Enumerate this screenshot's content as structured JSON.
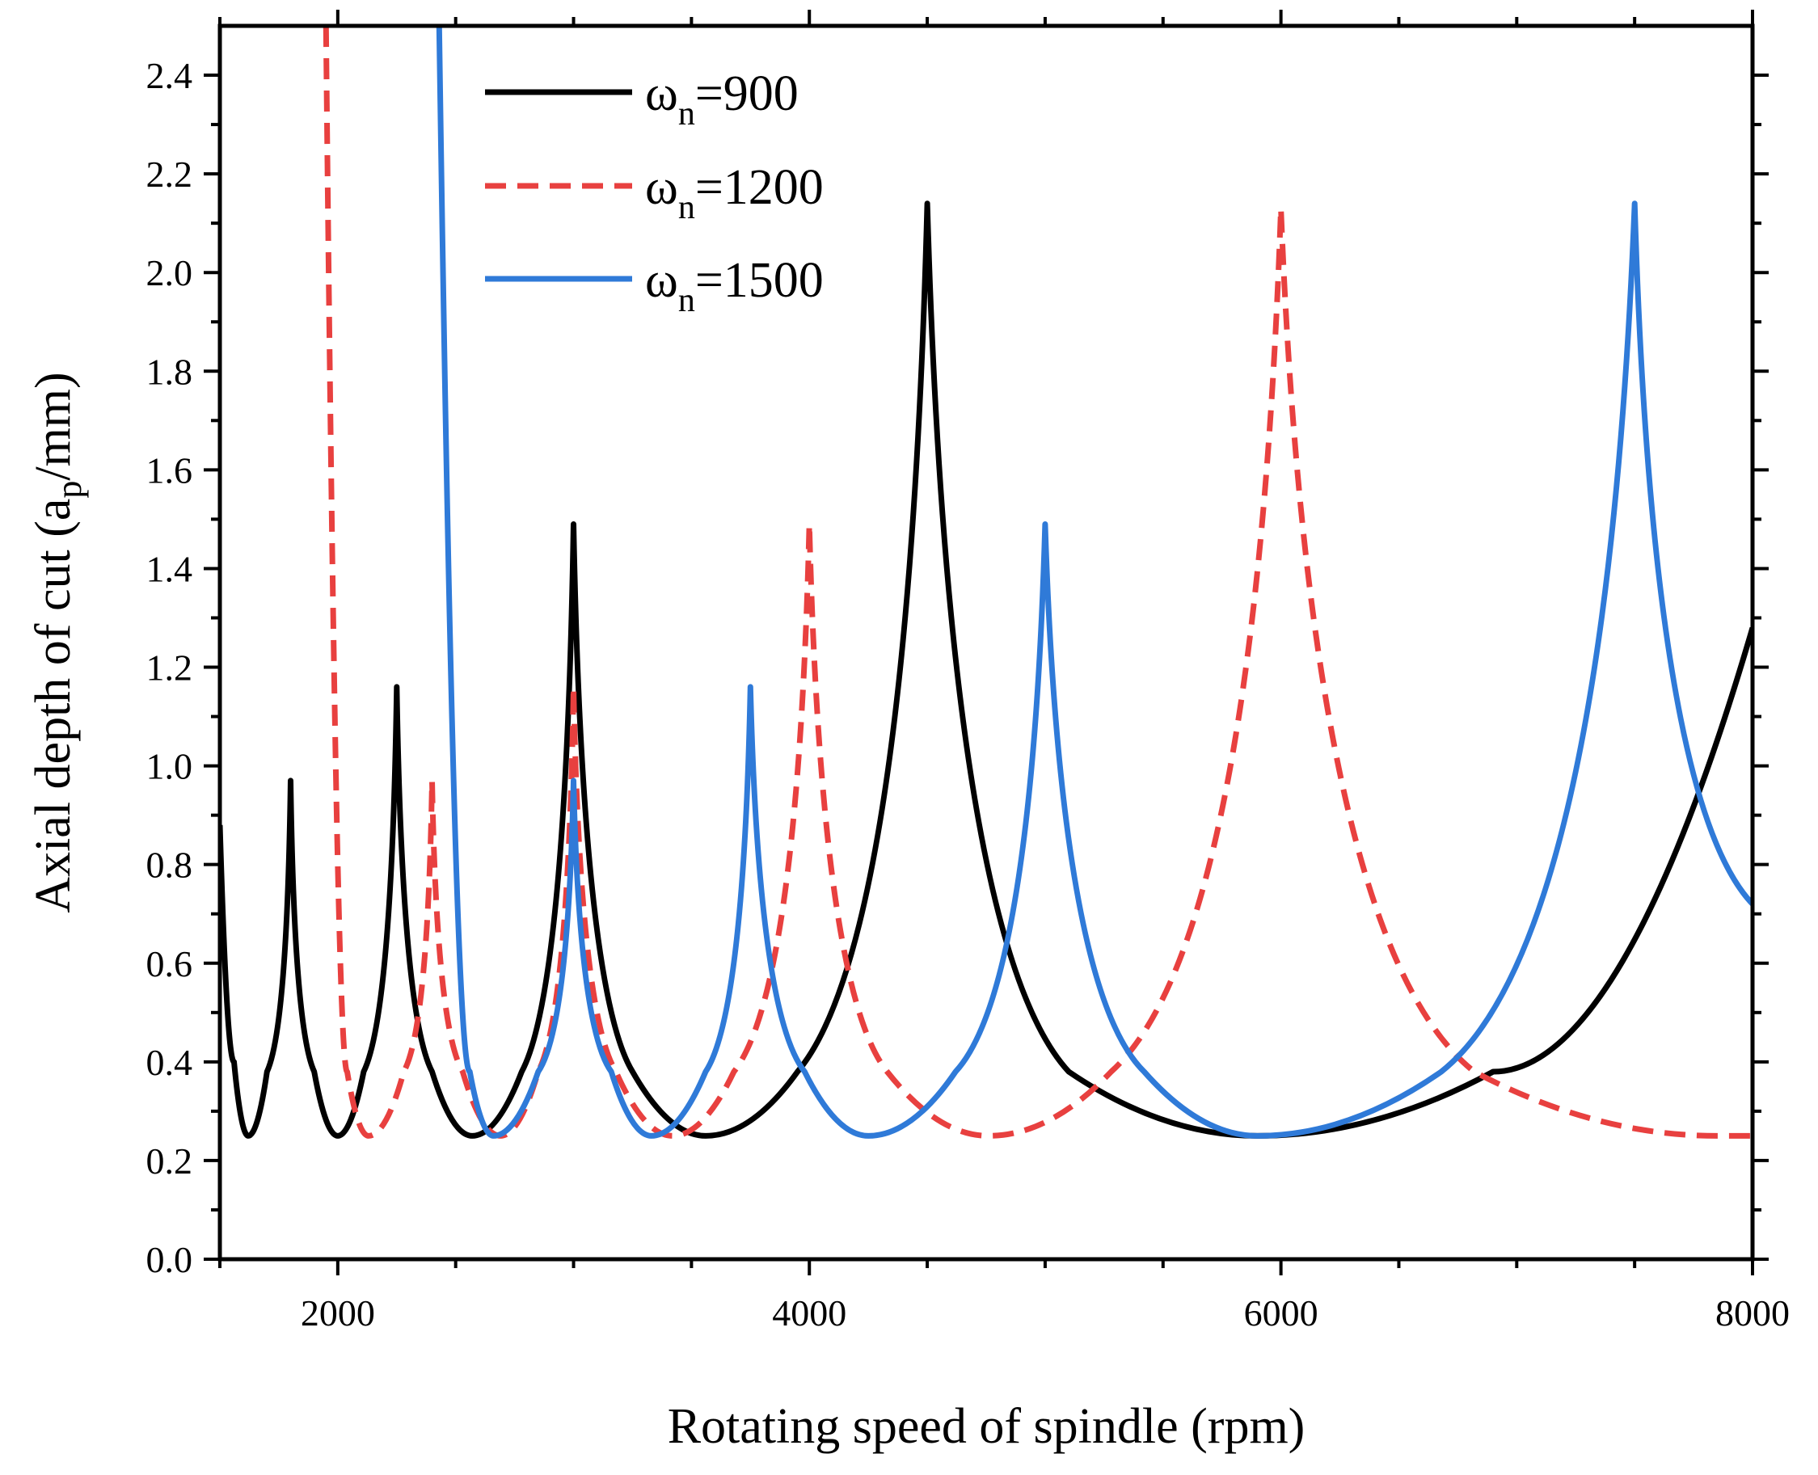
{
  "chart_data": {
    "type": "line",
    "title": "",
    "xlabel": "Rotating speed of spindle (rpm)",
    "ylabel_prefix": "Axial depth of cut (a",
    "ylabel_sub": "p",
    "ylabel_suffix": "/mm)",
    "xlim": [
      1500,
      8000
    ],
    "ylim": [
      0,
      2.5
    ],
    "x_ticks": [
      2000,
      4000,
      6000,
      8000
    ],
    "x_tick_labels": [
      "2000",
      "4000",
      "6000",
      "8000"
    ],
    "y_ticks": [
      0.0,
      0.2,
      0.4,
      0.6,
      0.8,
      1.0,
      1.2,
      1.4,
      1.6,
      1.8,
      2.0,
      2.2,
      2.4
    ],
    "y_tick_labels": [
      "0.0",
      "0.2",
      "0.4",
      "0.6",
      "0.8",
      "1.0",
      "1.2",
      "1.4",
      "1.6",
      "1.8",
      "2.0",
      "2.2",
      "2.4"
    ],
    "grid": false,
    "legend_position": "top-left",
    "series": [
      {
        "name": "ωn=900",
        "legend_base": "ω",
        "legend_sub": "n",
        "legend_rest": "=900",
        "color": "#000000",
        "dash": "solid",
        "lobes": [
          [
            1500,
            0.88
          ],
          [
            1560,
            0.4
          ],
          [
            1620,
            0.25
          ],
          [
            1700,
            0.38
          ],
          [
            1800,
            0.97
          ],
          [
            1900,
            0.38
          ],
          [
            2000,
            0.25
          ],
          [
            2110,
            0.38
          ],
          [
            2250,
            1.16
          ],
          [
            2400,
            0.38
          ],
          [
            2570,
            0.25
          ],
          [
            2780,
            0.38
          ],
          [
            3000,
            1.49
          ],
          [
            3250,
            0.38
          ],
          [
            3560,
            0.25
          ],
          [
            3950,
            0.38
          ],
          [
            4500,
            2.14
          ],
          [
            5100,
            0.38
          ],
          [
            5900,
            0.25
          ],
          [
            6900,
            0.38
          ],
          [
            8000,
            1.28
          ]
        ],
        "peaks_x": [
          1800,
          2250,
          3000,
          4500
        ]
      },
      {
        "name": "ωn=1200",
        "legend_base": "ω",
        "legend_sub": "n",
        "legend_rest": "=1200",
        "color": "#e8403f",
        "dash": "dashed",
        "lobes": [
          [
            1950,
            2.5
          ],
          [
            2040,
            0.38
          ],
          [
            2130,
            0.25
          ],
          [
            2280,
            0.38
          ],
          [
            2400,
            0.97
          ],
          [
            2530,
            0.38
          ],
          [
            2690,
            0.25
          ],
          [
            2850,
            0.38
          ],
          [
            3000,
            1.16
          ],
          [
            3180,
            0.38
          ],
          [
            3420,
            0.25
          ],
          [
            3680,
            0.38
          ],
          [
            4000,
            1.49
          ],
          [
            4330,
            0.38
          ],
          [
            4760,
            0.25
          ],
          [
            5280,
            0.38
          ],
          [
            6000,
            2.13
          ],
          [
            6820,
            0.38
          ],
          [
            7850,
            0.25
          ],
          [
            8000,
            0.25
          ]
        ],
        "peaks_x": [
          2400,
          3000,
          4000,
          6000
        ]
      },
      {
        "name": "ωn=1500",
        "legend_base": "ω",
        "legend_sub": "n",
        "legend_rest": "=1500",
        "color": "#2f7ad8",
        "dash": "solid",
        "lobes": [
          [
            2430,
            2.5
          ],
          [
            2560,
            0.38
          ],
          [
            2660,
            0.25
          ],
          [
            2850,
            0.38
          ],
          [
            3000,
            0.97
          ],
          [
            3160,
            0.38
          ],
          [
            3330,
            0.25
          ],
          [
            3560,
            0.38
          ],
          [
            3750,
            1.16
          ],
          [
            3980,
            0.38
          ],
          [
            4250,
            0.25
          ],
          [
            4620,
            0.38
          ],
          [
            5000,
            1.49
          ],
          [
            5420,
            0.38
          ],
          [
            5900,
            0.25
          ],
          [
            6680,
            0.38
          ],
          [
            7500,
            2.14
          ],
          [
            8000,
            0.72
          ]
        ],
        "peaks_x": [
          3000,
          3750,
          5000,
          7500
        ]
      }
    ]
  }
}
